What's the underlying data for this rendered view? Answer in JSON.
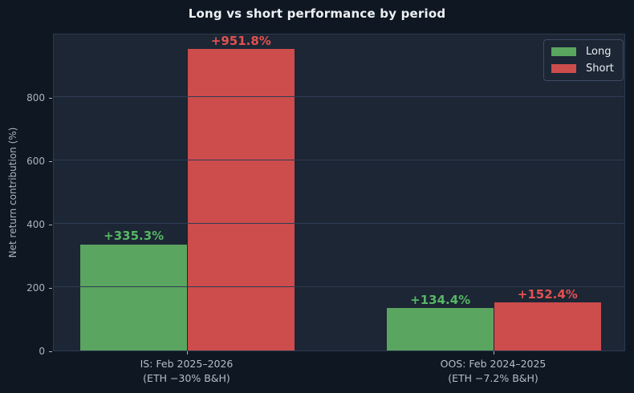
{
  "chart_data": {
    "type": "bar",
    "title": "Long vs short performance by period",
    "ylabel": "Net return contribution (%)",
    "xlabel": "",
    "categories": [
      "IS: Feb 2025–2026\n(ETH −30% B&H)",
      "OOS: Feb 2024–2025\n(ETH −7.2% B&H)"
    ],
    "series": [
      {
        "name": "Long",
        "values": [
          335.3,
          134.4
        ],
        "labels": [
          "+335.3%",
          "+134.4%"
        ],
        "color": "#5aa55f",
        "label_color": "#56b665"
      },
      {
        "name": "Short",
        "values": [
          951.8,
          152.4
        ],
        "labels": [
          "+951.8%",
          "+152.4%"
        ],
        "color": "#cd4c4c",
        "label_color": "#e25150"
      }
    ],
    "yticks": [
      0,
      200,
      400,
      600,
      800
    ],
    "ylim": [
      0,
      1002
    ],
    "grid": true,
    "legend_position": "upper right"
  },
  "colors": {
    "background": "#0f1722",
    "plot_background": "#1c2634",
    "plot_border": "#2c3a50",
    "gridline": "#2e3c54",
    "tick_text": "#a9b4c0",
    "title_text": "#edf1f5",
    "legend_text": "#e8edf2",
    "long": "#5aa55f",
    "short": "#cd4c4c"
  }
}
